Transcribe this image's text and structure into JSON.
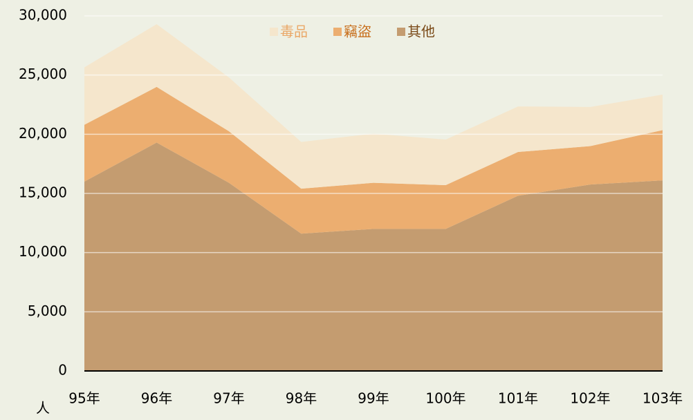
{
  "chart_data": {
    "type": "stacked_area",
    "categories": [
      "95年",
      "96年",
      "97年",
      "98年",
      "99年",
      "100年",
      "101年",
      "102年",
      "103年"
    ],
    "series": [
      {
        "name": "毒品",
        "color": "#f5e6cc",
        "values": [
          4850,
          5300,
          4550,
          3950,
          4150,
          3850,
          3850,
          3300,
          3000
        ]
      },
      {
        "name": "竊盜",
        "color": "#ecae70",
        "values": [
          4800,
          4700,
          4350,
          3800,
          3900,
          3700,
          3700,
          3250,
          4250
        ]
      },
      {
        "name": "其他",
        "color": "#c49c70",
        "values": [
          16000,
          19300,
          15900,
          11600,
          12000,
          12000,
          14800,
          15750,
          16100
        ]
      }
    ],
    "ylabel": "人",
    "ylim": [
      0,
      30000
    ],
    "yticks": [
      0,
      {
        "value": 5000,
        "label": "5,000"
      },
      {
        "value": 10000,
        "label": "10,000"
      },
      {
        "value": 15000,
        "label": "15,000"
      },
      {
        "value": 20000,
        "label": "20,000"
      },
      {
        "value": 25000,
        "label": "25,000"
      },
      {
        "value": 30000,
        "label": "30,000"
      }
    ],
    "grid": true
  }
}
